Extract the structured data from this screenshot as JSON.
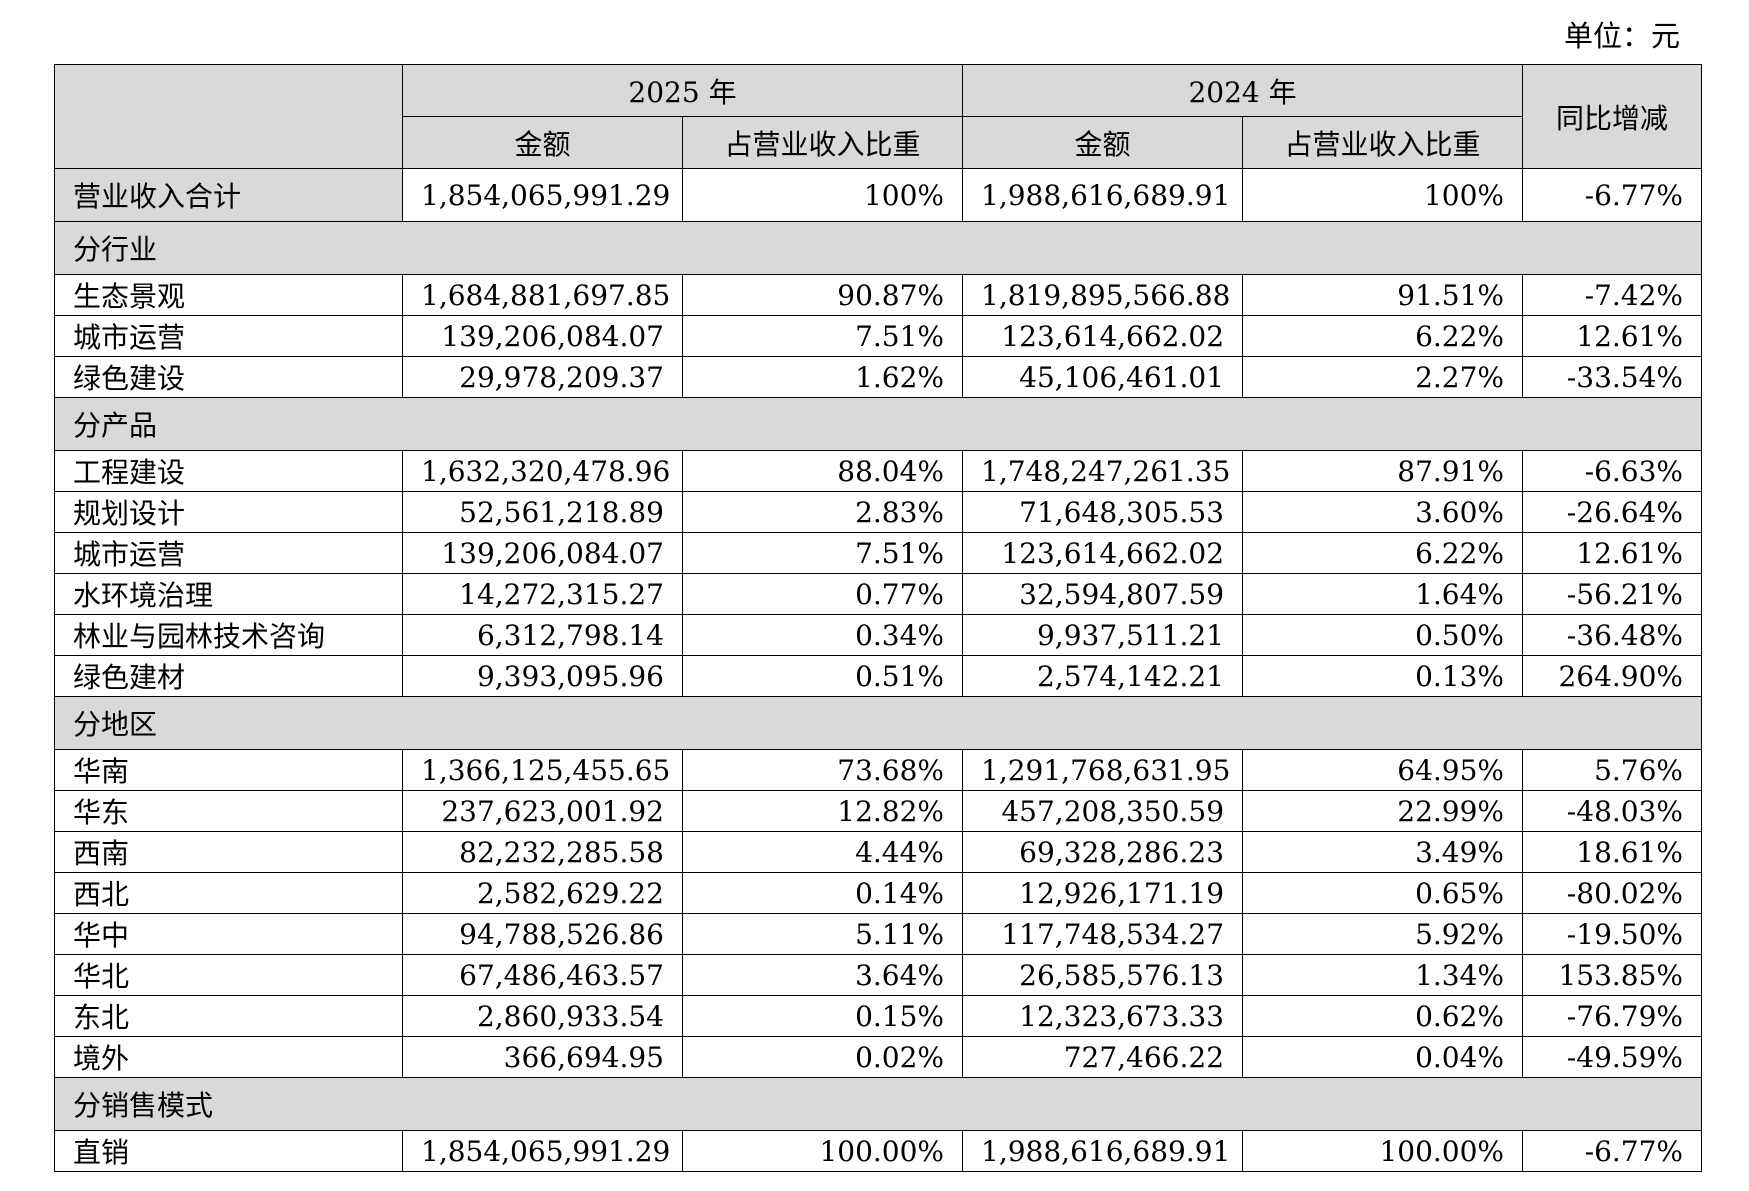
{
  "unit_label": "单位：元",
  "header": {
    "year_current": "2025 年",
    "year_prior": "2024 年",
    "amount": "金额",
    "ratio": "占营业收入比重",
    "yoy": "同比增减"
  },
  "total": {
    "label": "营业收入合计",
    "amt2025": "1,854,065,991.29",
    "pct2025": "100%",
    "amt2024": "1,988,616,689.91",
    "pct2024": "100%",
    "yoy": "-6.77%"
  },
  "sections": [
    {
      "title": "分行业",
      "rows": [
        {
          "label": "生态景观",
          "amt2025": "1,684,881,697.85",
          "pct2025": "90.87%",
          "amt2024": "1,819,895,566.88",
          "pct2024": "91.51%",
          "yoy": "-7.42%"
        },
        {
          "label": "城市运营",
          "amt2025": "139,206,084.07",
          "pct2025": "7.51%",
          "amt2024": "123,614,662.02",
          "pct2024": "6.22%",
          "yoy": "12.61%"
        },
        {
          "label": "绿色建设",
          "amt2025": "29,978,209.37",
          "pct2025": "1.62%",
          "amt2024": "45,106,461.01",
          "pct2024": "2.27%",
          "yoy": "-33.54%"
        }
      ]
    },
    {
      "title": "分产品",
      "rows": [
        {
          "label": "工程建设",
          "amt2025": "1,632,320,478.96",
          "pct2025": "88.04%",
          "amt2024": "1,748,247,261.35",
          "pct2024": "87.91%",
          "yoy": "-6.63%"
        },
        {
          "label": "规划设计",
          "amt2025": "52,561,218.89",
          "pct2025": "2.83%",
          "amt2024": "71,648,305.53",
          "pct2024": "3.60%",
          "yoy": "-26.64%"
        },
        {
          "label": "城市运营",
          "amt2025": "139,206,084.07",
          "pct2025": "7.51%",
          "amt2024": "123,614,662.02",
          "pct2024": "6.22%",
          "yoy": "12.61%"
        },
        {
          "label": "水环境治理",
          "amt2025": "14,272,315.27",
          "pct2025": "0.77%",
          "amt2024": "32,594,807.59",
          "pct2024": "1.64%",
          "yoy": "-56.21%"
        },
        {
          "label": "林业与园林技术咨询",
          "amt2025": "6,312,798.14",
          "pct2025": "0.34%",
          "amt2024": "9,937,511.21",
          "pct2024": "0.50%",
          "yoy": "-36.48%"
        },
        {
          "label": "绿色建材",
          "amt2025": "9,393,095.96",
          "pct2025": "0.51%",
          "amt2024": "2,574,142.21",
          "pct2024": "0.13%",
          "yoy": "264.90%"
        }
      ]
    },
    {
      "title": "分地区",
      "rows": [
        {
          "label": "华南",
          "amt2025": "1,366,125,455.65",
          "pct2025": "73.68%",
          "amt2024": "1,291,768,631.95",
          "pct2024": "64.95%",
          "yoy": "5.76%"
        },
        {
          "label": "华东",
          "amt2025": "237,623,001.92",
          "pct2025": "12.82%",
          "amt2024": "457,208,350.59",
          "pct2024": "22.99%",
          "yoy": "-48.03%"
        },
        {
          "label": "西南",
          "amt2025": "82,232,285.58",
          "pct2025": "4.44%",
          "amt2024": "69,328,286.23",
          "pct2024": "3.49%",
          "yoy": "18.61%"
        },
        {
          "label": "西北",
          "amt2025": "2,582,629.22",
          "pct2025": "0.14%",
          "amt2024": "12,926,171.19",
          "pct2024": "0.65%",
          "yoy": "-80.02%"
        },
        {
          "label": "华中",
          "amt2025": "94,788,526.86",
          "pct2025": "5.11%",
          "amt2024": "117,748,534.27",
          "pct2024": "5.92%",
          "yoy": "-19.50%"
        },
        {
          "label": "华北",
          "amt2025": "67,486,463.57",
          "pct2025": "3.64%",
          "amt2024": "26,585,576.13",
          "pct2024": "1.34%",
          "yoy": "153.85%"
        },
        {
          "label": "东北",
          "amt2025": "2,860,933.54",
          "pct2025": "0.15%",
          "amt2024": "12,323,673.33",
          "pct2024": "0.62%",
          "yoy": "-76.79%"
        },
        {
          "label": "境外",
          "amt2025": "366,694.95",
          "pct2025": "0.02%",
          "amt2024": "727,466.22",
          "pct2024": "0.04%",
          "yoy": "-49.59%"
        }
      ]
    },
    {
      "title": "分销售模式",
      "rows": [
        {
          "label": "直销",
          "amt2025": "1,854,065,991.29",
          "pct2025": "100.00%",
          "amt2024": "1,988,616,689.91",
          "pct2024": "100.00%",
          "yoy": "-6.77%"
        }
      ]
    }
  ]
}
